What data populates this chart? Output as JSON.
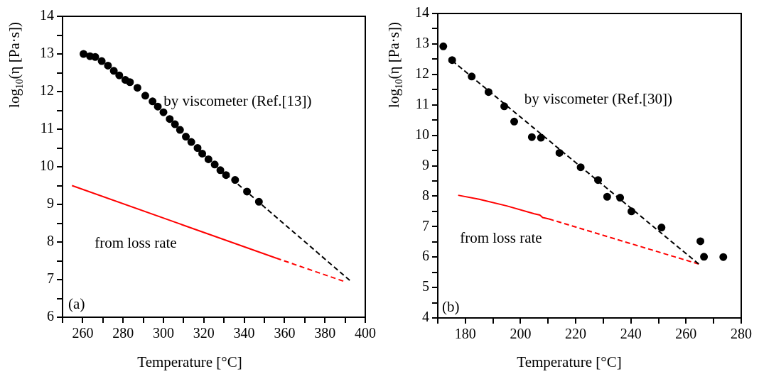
{
  "chart_data": [
    {
      "type": "scatter",
      "xlabel": "Temperature [°C]",
      "ylabel": "log$_{10}$(η [Pa·s])",
      "xlim": [
        250,
        400
      ],
      "ylim": [
        6,
        14
      ],
      "xticks": [
        {
          "value": 250,
          "label": null
        },
        260,
        {
          "value": 270,
          "label": null
        },
        280,
        {
          "value": 290,
          "label": null
        },
        300,
        {
          "value": 310,
          "label": null
        },
        320,
        {
          "value": 330,
          "label": null
        },
        340,
        {
          "value": 350,
          "label": null
        },
        360,
        {
          "value": 370,
          "label": null
        },
        380,
        {
          "value": 390,
          "label": null
        },
        400
      ],
      "yticks": [
        6,
        {
          "value": 6.5,
          "label": null
        },
        7,
        {
          "value": 7.5,
          "label": null
        },
        8,
        {
          "value": 8.5,
          "label": null
        },
        9,
        {
          "value": 9.5,
          "label": null
        },
        10,
        {
          "value": 10.5,
          "label": null
        },
        11,
        {
          "value": 11.5,
          "label": null
        },
        12,
        {
          "value": 12.5,
          "label": null
        },
        13,
        {
          "value": 13.5,
          "label": null
        },
        14
      ],
      "series": [
        {
          "type": "scatter",
          "color": "#000000",
          "marker": "circle",
          "x": [
            260.4,
            263.6,
            266.2,
            269.4,
            272.5,
            275.4,
            278.1,
            281.1,
            283.4,
            287.1,
            291,
            294.6,
            297.2,
            300,
            303.1,
            305.7,
            308.2,
            311.1,
            313.8,
            316.9,
            319.2,
            322.3,
            325.4,
            328.2,
            331,
            335.5,
            341.4,
            347.3
          ],
          "values": [
            13.0,
            12.94,
            12.92,
            12.81,
            12.69,
            12.55,
            12.43,
            12.31,
            12.25,
            12.1,
            11.89,
            11.74,
            11.6,
            11.45,
            11.27,
            11.13,
            10.98,
            10.8,
            10.66,
            10.5,
            10.35,
            10.2,
            10.06,
            9.91,
            9.78,
            9.65,
            9.34,
            9.07
          ]
        },
        {
          "type": "line",
          "color": "#000000",
          "marker": "none",
          "line_style": "dashed",
          "x": [
            316,
            392.3
          ],
          "values": [
            10.5,
            6.98
          ]
        },
        {
          "type": "line",
          "color": "#ff0000",
          "marker": "none",
          "line_style": "solid",
          "x": [
            254.7,
            355.9
          ],
          "values": [
            9.5,
            7.57
          ]
        },
        {
          "type": "line",
          "color": "#ff0000",
          "marker": "none",
          "line_style": "dashed",
          "x": [
            355.9,
            389.1
          ],
          "values": [
            7.57,
            6.96
          ]
        }
      ],
      "annotations": [
        "by viscometer (Ref.[13])",
        "from loss rate",
        "(a)"
      ]
    },
    {
      "type": "scatter",
      "xlabel": "Temperature [°C]",
      "ylabel": "log$_{10}$(η [Pa·s])",
      "xlim": [
        170,
        280
      ],
      "ylim": [
        4,
        14
      ],
      "xticks": [
        {
          "value": 170,
          "label": null
        },
        180,
        {
          "value": 190,
          "label": null
        },
        200,
        {
          "value": 210,
          "label": null
        },
        220,
        {
          "value": 230,
          "label": null
        },
        240,
        {
          "value": 250,
          "label": null
        },
        260,
        {
          "value": 270,
          "label": null
        },
        280
      ],
      "yticks": [
        4,
        {
          "value": 4.5,
          "label": null
        },
        5,
        {
          "value": 5.5,
          "label": null
        },
        6,
        {
          "value": 6.5,
          "label": null
        },
        7,
        {
          "value": 7.5,
          "label": null
        },
        8,
        {
          "value": 8.5,
          "label": null
        },
        9,
        {
          "value": 9.5,
          "label": null
        },
        10,
        {
          "value": 10.5,
          "label": null
        },
        11,
        {
          "value": 11.5,
          "label": null
        },
        12,
        {
          "value": 12.5,
          "label": null
        },
        13,
        {
          "value": 13.5,
          "label": null
        },
        14
      ],
      "series": [
        {
          "type": "scatter",
          "color": "#000000",
          "marker": "circle",
          "x": [
            172,
            175.2,
            182.3,
            188.4,
            194.1,
            197.7,
            204.1,
            207.4,
            214.1,
            221.8,
            228.1,
            231.4,
            236.1,
            240.2,
            251.1,
            265.2,
            266.5,
            273.5
          ],
          "values": [
            12.92,
            12.47,
            11.93,
            11.42,
            10.95,
            10.45,
            9.94,
            9.92,
            9.42,
            8.95,
            8.53,
            7.98,
            7.95,
            7.5,
            6.97,
            6.52,
            6.01,
            6.0
          ]
        },
        {
          "type": "line",
          "color": "#000000",
          "marker": "none",
          "line_style": "dashed",
          "x": [
            175.2,
            264.6
          ],
          "values": [
            12.45,
            5.77
          ]
        },
        {
          "type": "line",
          "color": "#ff0000",
          "marker": "none",
          "line_style": "solid",
          "x": [
            177.4,
            185,
            195,
            205,
            207,
            208,
            210.3
          ],
          "values": [
            8.03,
            7.9,
            7.68,
            7.42,
            7.38,
            7.3,
            7.25
          ]
        },
        {
          "type": "line",
          "color": "#ff0000",
          "marker": "none",
          "line_style": "dashed",
          "x": [
            210.3,
            264.6
          ],
          "values": [
            7.25,
            5.77
          ]
        }
      ],
      "annotations": [
        "by viscometer (Ref.[30])",
        "from loss rate",
        "(b)"
      ]
    }
  ]
}
